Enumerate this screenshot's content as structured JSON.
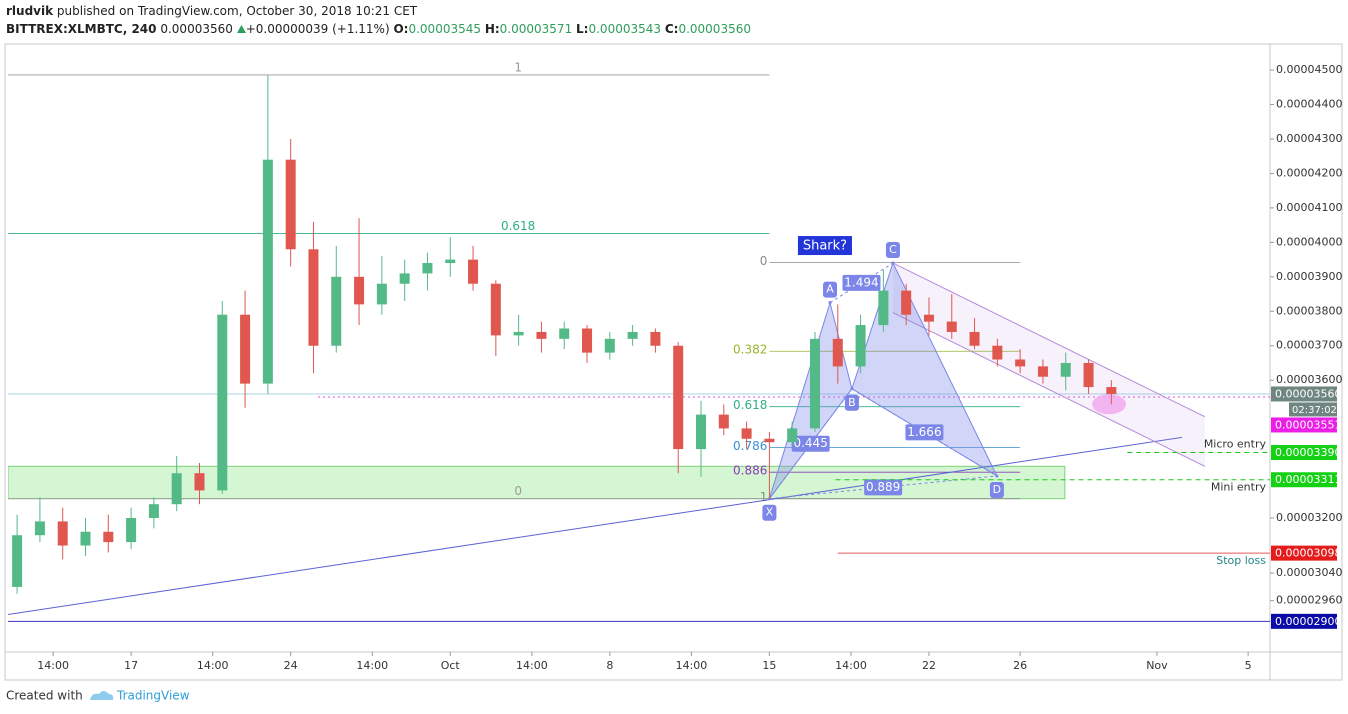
{
  "header": {
    "publisher": "rludvik",
    "published": "published on TradingView.com, October 30, 2018 10:21 CET",
    "symbol": "BITTREX:XLMBTC, 240",
    "last": "0.00003560",
    "change": "+0.00000039 (+1.11%)",
    "ohlc": [
      {
        "key": "O:",
        "value": "0.00003545"
      },
      {
        "key": "H:",
        "value": "0.00003571"
      },
      {
        "key": "L:",
        "value": "0.00003543"
      },
      {
        "key": "C:",
        "value": "0.00003560"
      }
    ]
  },
  "chart_data": {
    "type": "candlestick",
    "up_color": "#53b987",
    "down_color": "#e0574f",
    "grid": false,
    "x": [
      12,
      13,
      14,
      15,
      16,
      17,
      18,
      19,
      20,
      21,
      22,
      23,
      24,
      25,
      26,
      27,
      28,
      29,
      30,
      31,
      32,
      33,
      34,
      35,
      36,
      37,
      38,
      39,
      40,
      41,
      42,
      43,
      44,
      45,
      46,
      47,
      48,
      49,
      50,
      51,
      52,
      53,
      54,
      55,
      56,
      57,
      58,
      59,
      60
    ],
    "open": [
      3e-05,
      3.15e-05,
      3.19e-05,
      3.12e-05,
      3.16e-05,
      3.13e-05,
      3.2e-05,
      3.24e-05,
      3.33e-05,
      3.28e-05,
      3.79e-05,
      3.59e-05,
      4.24e-05,
      3.98e-05,
      3.7e-05,
      3.9e-05,
      3.82e-05,
      3.88e-05,
      3.91e-05,
      3.94e-05,
      3.95e-05,
      3.88e-05,
      3.73e-05,
      3.74e-05,
      3.72e-05,
      3.75e-05,
      3.68e-05,
      3.72e-05,
      3.74e-05,
      3.7e-05,
      3.4e-05,
      3.5e-05,
      3.46e-05,
      3.43e-05,
      3.42e-05,
      3.46e-05,
      3.72e-05,
      3.64e-05,
      3.76e-05,
      3.86e-05,
      3.79e-05,
      3.77e-05,
      3.74e-05,
      3.7e-05,
      3.66e-05,
      3.64e-05,
      3.61e-05,
      3.65e-05,
      3.58e-05
    ],
    "high": [
      3.21e-05,
      3.26e-05,
      3.23e-05,
      3.2e-05,
      3.21e-05,
      3.23e-05,
      3.26e-05,
      3.38e-05,
      3.36e-05,
      3.83e-05,
      3.86e-05,
      4.485e-05,
      4.3e-05,
      4.06e-05,
      3.99e-05,
      4.07e-05,
      3.96e-05,
      3.95e-05,
      3.97e-05,
      4.015e-05,
      3.99e-05,
      3.89e-05,
      3.79e-05,
      3.77e-05,
      3.77e-05,
      3.76e-05,
      3.74e-05,
      3.76e-05,
      3.75e-05,
      3.71e-05,
      3.54e-05,
      3.53e-05,
      3.48e-05,
      3.45e-05,
      3.48e-05,
      3.74e-05,
      3.82e-05,
      3.79e-05,
      3.92e-05,
      3.88e-05,
      3.84e-05,
      3.85e-05,
      3.78e-05,
      3.72e-05,
      3.69e-05,
      3.66e-05,
      3.68e-05,
      3.66e-05,
      3.6e-05
    ],
    "low": [
      2.98e-05,
      3.13e-05,
      3.08e-05,
      3.09e-05,
      3.1e-05,
      3.11e-05,
      3.17e-05,
      3.22e-05,
      3.24e-05,
      3.27e-05,
      3.52e-05,
      3.56e-05,
      3.93e-05,
      3.62e-05,
      3.68e-05,
      3.76e-05,
      3.79e-05,
      3.83e-05,
      3.86e-05,
      3.9e-05,
      3.86e-05,
      3.67e-05,
      3.7e-05,
      3.68e-05,
      3.69e-05,
      3.65e-05,
      3.66e-05,
      3.7e-05,
      3.68e-05,
      3.33e-05,
      3.32e-05,
      3.44e-05,
      3.4e-05,
      3.255e-05,
      3.41e-05,
      3.45e-05,
      3.59e-05,
      3.62e-05,
      3.74e-05,
      3.76e-05,
      3.73e-05,
      3.72e-05,
      3.69e-05,
      3.64e-05,
      3.62e-05,
      3.59e-05,
      3.57e-05,
      3.56e-05,
      3.53e-05
    ],
    "close": [
      3.15e-05,
      3.19e-05,
      3.12e-05,
      3.16e-05,
      3.13e-05,
      3.2e-05,
      3.24e-05,
      3.33e-05,
      3.28e-05,
      3.79e-05,
      3.59e-05,
      4.24e-05,
      3.98e-05,
      3.7e-05,
      3.9e-05,
      3.82e-05,
      3.88e-05,
      3.91e-05,
      3.94e-05,
      3.95e-05,
      3.88e-05,
      3.73e-05,
      3.74e-05,
      3.72e-05,
      3.75e-05,
      3.68e-05,
      3.72e-05,
      3.74e-05,
      3.7e-05,
      3.4e-05,
      3.5e-05,
      3.46e-05,
      3.43e-05,
      3.42e-05,
      3.46e-05,
      3.72e-05,
      3.64e-05,
      3.76e-05,
      3.86e-05,
      3.79e-05,
      3.77e-05,
      3.74e-05,
      3.7e-05,
      3.66e-05,
      3.64e-05,
      3.61e-05,
      3.65e-05,
      3.58e-05,
      3.56e-05
    ],
    "xlim": [
      11.6,
      66.96
    ],
    "ylim": [
      2.811e-05,
      4.57e-05
    ],
    "xticks": [
      {
        "value": 13.58,
        "label": "14:00"
      },
      17,
      {
        "value": 20.58,
        "label": "14:00"
      },
      24,
      {
        "value": 27.58,
        "label": "14:00"
      },
      {
        "value": 31,
        "label": "Oct"
      },
      {
        "value": 34.58,
        "label": "14:00"
      },
      {
        "value": 38,
        "label": "8"
      },
      {
        "value": 41.58,
        "label": "14:00"
      },
      {
        "value": 45,
        "label": "15"
      },
      {
        "value": 48.58,
        "label": "14:00"
      },
      {
        "value": 52,
        "label": "22"
      },
      {
        "value": 56,
        "label": "26"
      },
      {
        "value": 62,
        "label": "Nov"
      },
      {
        "value": 66,
        "label": "5"
      }
    ],
    "yticks": [
      {
        "value": 4.5e-05,
        "label": "0.00004500"
      },
      {
        "value": 4.4e-05,
        "label": "0.00004400"
      },
      {
        "value": 4.3e-05,
        "label": "0.00004300"
      },
      {
        "value": 4.2e-05,
        "label": "0.00004200"
      },
      {
        "value": 4.1e-05,
        "label": "0.00004100"
      },
      {
        "value": 4e-05,
        "label": "0.00004000"
      },
      {
        "value": 3.9e-05,
        "label": "0.00003900"
      },
      {
        "value": 3.8e-05,
        "label": "0.00003800"
      },
      {
        "value": 3.7e-05,
        "label": "0.00003700"
      },
      {
        "value": 3.6e-05,
        "label": "0.00003600"
      },
      {
        "value": 3.2e-05,
        "label": "0.00003200"
      },
      {
        "value": 3.04e-05,
        "label": "0.00003040"
      },
      {
        "value": 2.96e-05,
        "label": "0.00002960"
      }
    ],
    "zone": {
      "x": [
        11.6,
        57.96
      ],
      "values": [
        3.35e-05,
        3.256e-05
      ],
      "color": "#b9f0b4"
    },
    "fibs": [
      {
        "x": [
          11.6,
          45
        ],
        "levels": [
          {
            "ratio": 1,
            "value": 4.486e-05,
            "color": "#9a9a9a"
          },
          {
            "ratio": 0.618,
            "value": 4.026e-05,
            "color": "#2fae86"
          },
          {
            "ratio": 0,
            "value": 3.256e-05,
            "color": "#9a9a9a"
          }
        ]
      },
      {
        "x": [
          45,
          56
        ],
        "levels": [
          {
            "ratio": 0,
            "value": 3.942e-05,
            "color": "#8c8c8c"
          },
          {
            "ratio": 0.382,
            "value": 3.684e-05,
            "color": "#97b52c"
          },
          {
            "ratio": 0.618,
            "value": 3.523e-05,
            "color": "#2fae86"
          },
          {
            "ratio": 0.786,
            "value": 3.405e-05,
            "color": "#3a8fcf"
          },
          {
            "ratio": 0.886,
            "value": 3.333e-05,
            "color": "#8a3db8"
          },
          {
            "ratio": 1,
            "value": 3.256e-05,
            "color": "#8c8c8c"
          }
        ]
      }
    ],
    "trendline": {
      "x": [
        11.6,
        63.1
      ],
      "values": [
        2.92e-05,
        3.434e-05
      ],
      "color": "#5a62d6"
    },
    "channel": {
      "x": [
        50.42,
        64.1
      ],
      "upper": [
        3.94e-05,
        3.494e-05
      ],
      "lower": [
        3.796e-05,
        3.35e-05
      ],
      "color": "#b58ad8"
    },
    "pattern": {
      "name": "Shark?",
      "color": "#7b86e8",
      "points": [
        {
          "label": "X",
          "x": 45,
          "value": 3.256e-05
        },
        {
          "label": "A",
          "x": 47.66,
          "value": 3.825e-05
        },
        {
          "label": "B",
          "x": 48.62,
          "value": 3.575e-05
        },
        {
          "label": "C",
          "x": 50.42,
          "value": 3.94e-05
        },
        {
          "label": "D",
          "x": 54.98,
          "value": 3.322e-05
        }
      ],
      "ratios": [
        0.445,
        1.494,
        1.666,
        0.889
      ]
    },
    "highlight": {
      "x": 59.9,
      "value": 3.53e-05,
      "color": "#f3a6ef"
    },
    "levels": [
      {
        "name": "Micro entry",
        "value": 3.39e-05,
        "from": 60.7,
        "color": "#19c519"
      },
      {
        "name": "Mini entry",
        "value": 3.311e-05,
        "from": 47.9,
        "color": "#19c519"
      },
      {
        "name": "Stop loss",
        "value": 3.098e-05,
        "from": 48,
        "color": "#e05a5a"
      }
    ],
    "pink_line": {
      "value": 3.551e-05,
      "from": 25.2,
      "color": "#e04fe0"
    },
    "bottom_line": {
      "value": 2.9e-05,
      "color": "#3434c8"
    },
    "price_labels": [
      {
        "value": 3.56e-05,
        "label": "0.00003560",
        "color": "#6f8580"
      },
      {
        "value": 3.551e-05,
        "label": "0.00003551",
        "color": "#ea1ee6"
      },
      {
        "value": 3.39e-05,
        "label": "0.00003390",
        "color": "#16d016"
      },
      {
        "value": 3.311e-05,
        "label": "0.00003311",
        "color": "#16d016"
      },
      {
        "value": 3.098e-05,
        "label": "0.00003098",
        "color": "#e51c1c"
      },
      {
        "value": 2.9e-05,
        "label": "0.00002900",
        "color": "#0b0ba8"
      }
    ],
    "countdown": "02:37:02"
  },
  "footer": {
    "created": "Created with",
    "brand": "TradingView"
  }
}
